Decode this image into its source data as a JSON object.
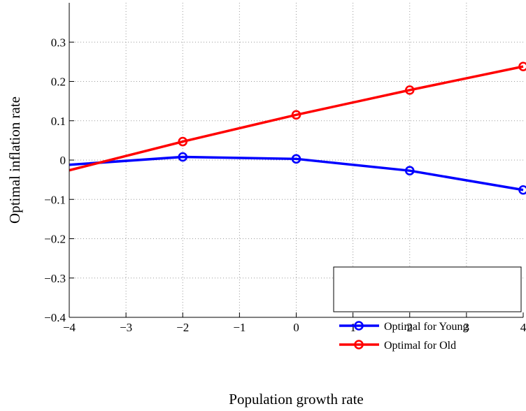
{
  "chart_data": {
    "type": "line",
    "title": "",
    "xlabel": "Population growth rate",
    "ylabel": "Optimal inflation rate",
    "xlim": [
      -4,
      4
    ],
    "ylim": [
      -0.4,
      0.4
    ],
    "xticks": [
      -4,
      -3,
      -2,
      -1,
      0,
      1,
      2,
      3,
      4
    ],
    "xtick_labels": [
      "−4",
      "−3",
      "−2",
      "−1",
      "0",
      "1",
      "2",
      "3",
      "4"
    ],
    "yticks": [
      -0.4,
      -0.3,
      -0.2,
      -0.1,
      0,
      0.1,
      0.2,
      0.3
    ],
    "ytick_labels": [
      "−0.4",
      "−0.3",
      "−0.2",
      "−0.1",
      "0",
      "0.1",
      "0.2",
      "0.3"
    ],
    "grid": true,
    "legend_position": "bottom-right",
    "series": [
      {
        "name": "Optimal for Young",
        "color": "#0000ff",
        "x": [
          -4,
          -2,
          0,
          2,
          4
        ],
        "y": [
          -0.012,
          0.008,
          0.003,
          -0.027,
          -0.076
        ],
        "markers": [
          false,
          true,
          true,
          true,
          true
        ]
      },
      {
        "name": "Optimal for Old",
        "color": "#ff0000",
        "x": [
          -4,
          -2,
          0,
          2,
          4
        ],
        "y": [
          -0.026,
          0.047,
          0.115,
          0.178,
          0.238
        ],
        "markers": [
          false,
          true,
          true,
          true,
          true
        ]
      }
    ]
  }
}
